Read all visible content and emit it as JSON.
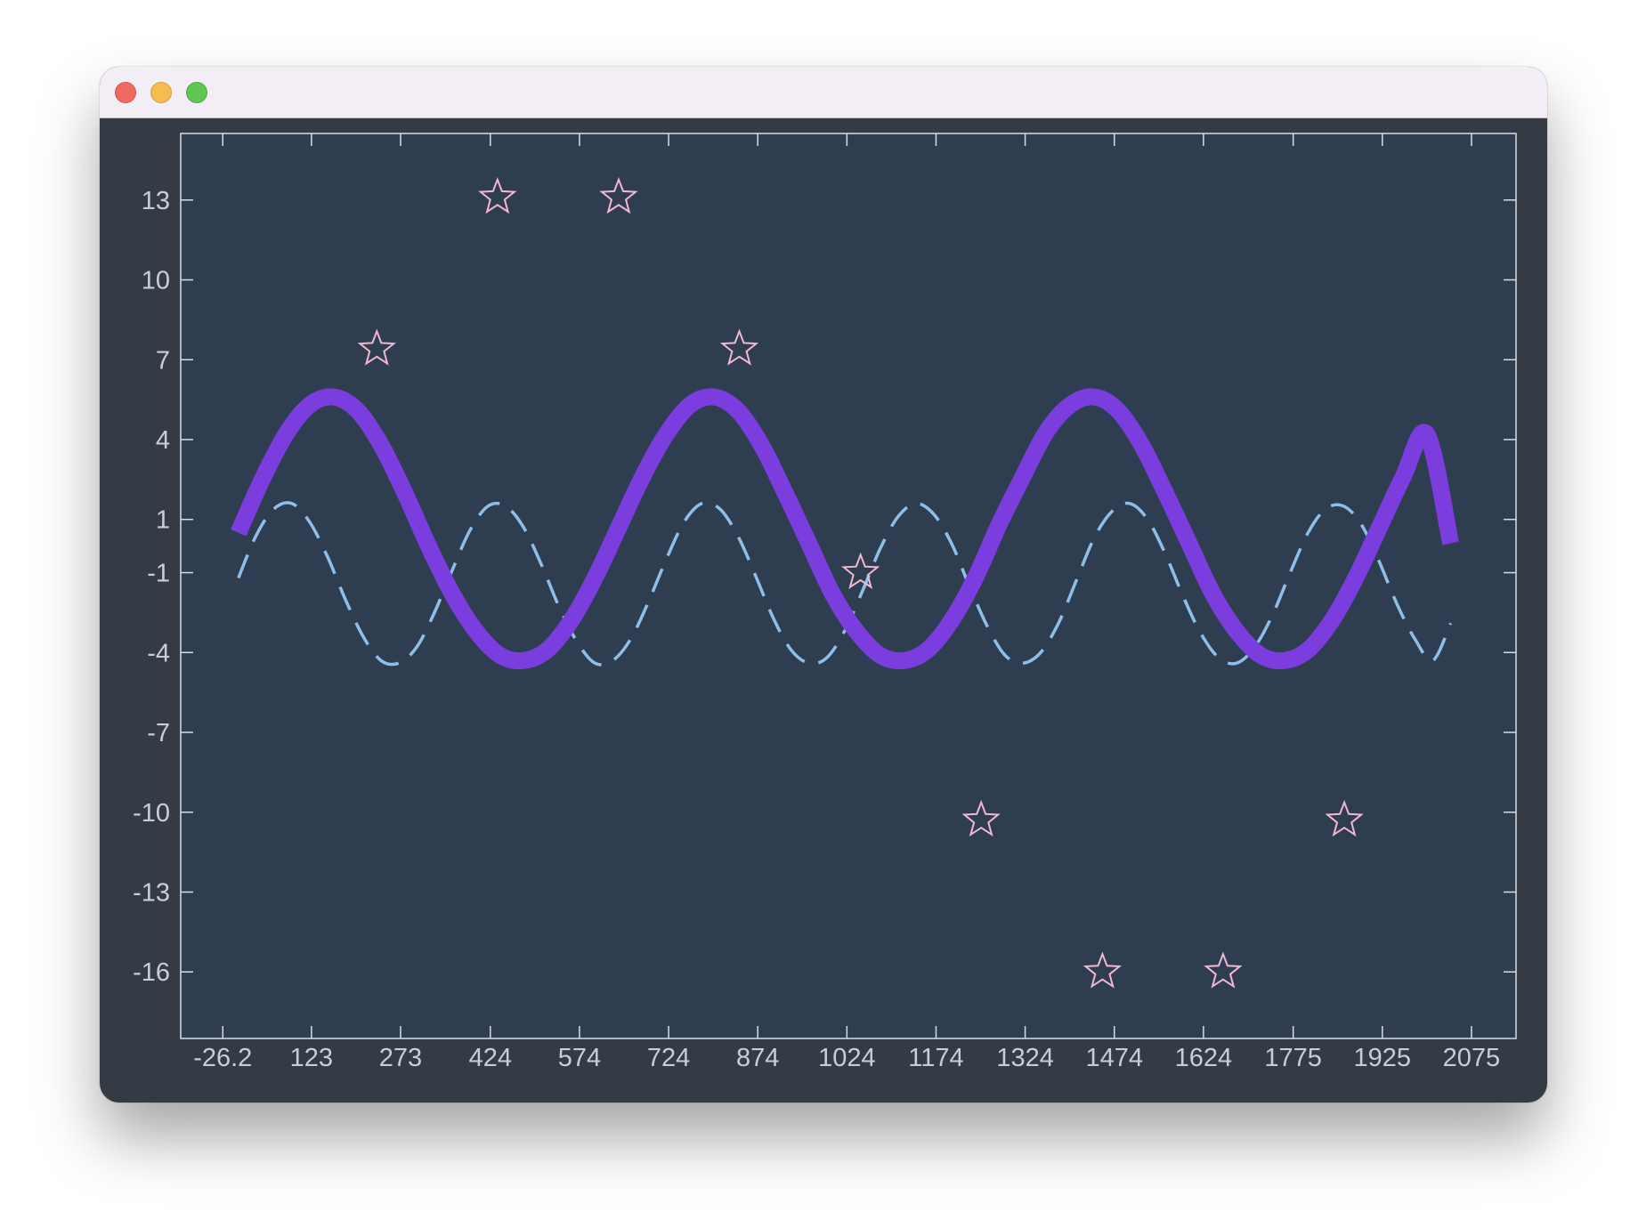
{
  "window": {
    "title": "",
    "controls": [
      "close",
      "minimize",
      "zoom"
    ]
  },
  "colors": {
    "window_bg": "#343b45",
    "plot_bg": "#2e3d50",
    "axis": "#d8dde3",
    "tick_text": "#c9ced6",
    "titlebar": "#f3eef6"
  },
  "chart_data": {
    "type": "line",
    "title": "",
    "xlabel": "",
    "ylabel": "",
    "xlim": [
      -97,
      2150
    ],
    "ylim": [
      -18.5,
      15.5
    ],
    "x_ticks": [
      -26.2,
      123,
      273,
      424,
      574,
      724,
      874,
      1024,
      1174,
      1324,
      1474,
      1624,
      1775,
      1925,
      2075
    ],
    "x_tick_labels": [
      "-26.2",
      "123",
      "273",
      "424",
      "574",
      "724",
      "874",
      "1024",
      "1174",
      "1324",
      "1474",
      "1624",
      "1775",
      "1925",
      "2075"
    ],
    "y_ticks": [
      13,
      10,
      7,
      4,
      1,
      -1,
      -4,
      -7,
      -10,
      -13,
      -16
    ],
    "y_tick_labels": [
      "13",
      "10",
      "7",
      "4",
      "1",
      "-1",
      "-4",
      "-7",
      "-10",
      "-13",
      "-16"
    ],
    "grid": false,
    "legend": "none",
    "series": [
      {
        "type": "line",
        "style": "solid",
        "color": "#7b3ddd",
        "x": [
          0,
          40,
          80,
          120,
          160,
          200,
          240,
          280,
          320,
          360,
          400,
          440,
          480,
          520,
          560,
          600,
          640,
          680,
          720,
          760,
          800,
          840,
          880,
          920,
          960,
          1000,
          1040,
          1080,
          1120,
          1160,
          1200,
          1240,
          1280,
          1320,
          1360,
          1400,
          1440,
          1480,
          1520,
          1560,
          1600,
          1640,
          1680,
          1720,
          1760,
          1800,
          1840,
          1880,
          1920,
          1960,
          2000,
          2040
        ],
        "y": [
          0.5,
          2.5,
          4.2,
          5.3,
          5.6,
          5.1,
          3.8,
          2.0,
          0.0,
          -1.8,
          -3.2,
          -4.1,
          -4.3,
          -3.9,
          -2.8,
          -1.2,
          0.7,
          2.6,
          4.2,
          5.3,
          5.6,
          5.1,
          3.8,
          2.0,
          0.1,
          -1.8,
          -3.2,
          -4.1,
          -4.3,
          -3.9,
          -2.8,
          -1.2,
          0.8,
          2.6,
          4.3,
          5.3,
          5.6,
          5.1,
          3.8,
          2.0,
          0.1,
          -1.8,
          -3.2,
          -4.1,
          -4.3,
          -3.9,
          -2.8,
          -1.2,
          0.7,
          2.6,
          4.2,
          0.0
        ],
        "note_values_follow_curve": true
      },
      {
        "type": "line",
        "style": "dashed",
        "color": "#8fbfe8",
        "x": [
          0,
          30,
          60,
          90,
          120,
          150,
          180,
          210,
          240,
          270,
          300,
          330,
          360,
          390,
          420,
          450,
          480,
          510,
          540,
          570,
          600,
          630,
          660,
          690,
          720,
          750,
          780,
          810,
          840,
          870,
          900,
          930,
          960,
          990,
          1020,
          1050,
          1080,
          1110,
          1140,
          1170,
          1200,
          1230,
          1260,
          1290,
          1320,
          1350,
          1380,
          1410,
          1440,
          1470,
          1500,
          1530,
          1560,
          1590,
          1620,
          1650,
          1680,
          1710,
          1740,
          1770,
          1800,
          1830,
          1860,
          1890,
          1920,
          1950,
          1980,
          2010,
          2040
        ],
        "y": [
          -1.2,
          0.4,
          1.4,
          1.6,
          0.9,
          -0.4,
          -2.0,
          -3.4,
          -4.3,
          -4.4,
          -3.8,
          -2.5,
          -0.9,
          0.6,
          1.5,
          1.5,
          0.7,
          -0.7,
          -2.3,
          -3.6,
          -4.4,
          -4.3,
          -3.5,
          -2.1,
          -0.5,
          0.9,
          1.6,
          1.4,
          0.4,
          -1.1,
          -2.7,
          -3.9,
          -4.4,
          -4.2,
          -3.2,
          -1.7,
          -0.1,
          1.1,
          1.6,
          1.2,
          0.1,
          -1.5,
          -3.0,
          -4.1,
          -4.4,
          -4.0,
          -2.9,
          -1.3,
          0.3,
          1.3,
          1.6,
          1.0,
          -0.3,
          -1.9,
          -3.3,
          -4.2,
          -4.4,
          -3.8,
          -2.6,
          -1.0,
          0.5,
          1.4,
          1.5,
          0.8,
          -0.6,
          -2.2,
          -3.5,
          -4.3,
          -2.9
        ]
      },
      {
        "type": "scatter",
        "marker": "star",
        "color": "#f2b8d2",
        "x": [
          233,
          436,
          640,
          843,
          1047,
          1250,
          1454,
          1657,
          1861
        ],
        "y": [
          7.4,
          13.1,
          13.1,
          7.4,
          -1.0,
          -10.3,
          -16.0,
          -16.0,
          -10.3
        ]
      }
    ]
  }
}
